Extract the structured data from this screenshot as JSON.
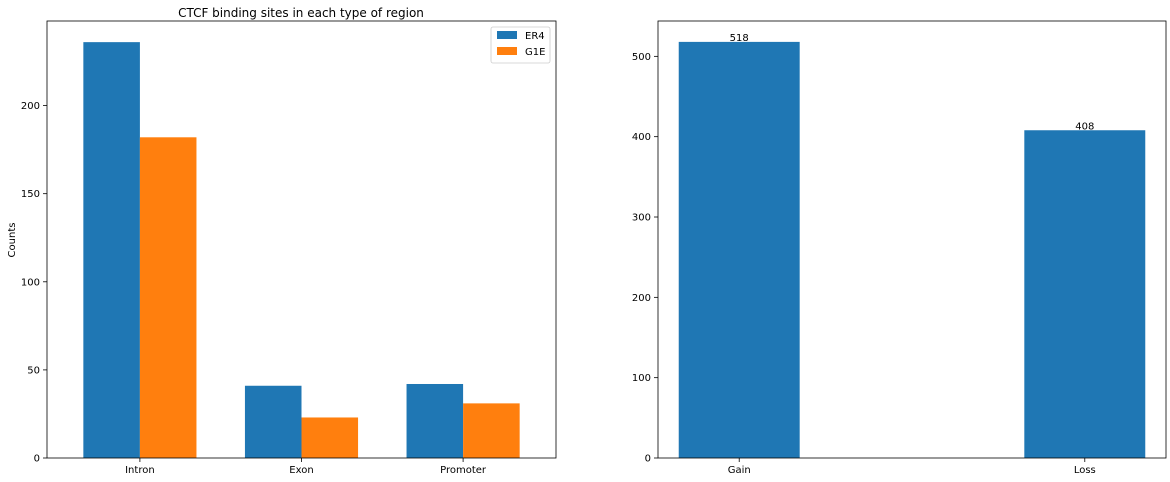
{
  "chart_data": [
    {
      "type": "bar",
      "title": "CTCF binding sites in each type of region",
      "xlabel": "",
      "ylabel": "Counts",
      "categories": [
        "Intron",
        "Exon",
        "Promoter"
      ],
      "series": [
        {
          "name": "ER4",
          "color": "#1f77b4",
          "values": [
            236,
            41,
            42
          ]
        },
        {
          "name": "G1E",
          "color": "#ff7f0e",
          "values": [
            182,
            23,
            31
          ]
        }
      ],
      "ylim": [
        0,
        248
      ],
      "yticks": [
        0,
        50,
        100,
        150,
        200
      ],
      "grid": false,
      "legend": "top-right"
    },
    {
      "type": "bar",
      "title": "",
      "xlabel": "",
      "ylabel": "",
      "categories": [
        "Gain",
        "Loss"
      ],
      "series": [
        {
          "color": "#1f77b4",
          "values": [
            518,
            408
          ]
        }
      ],
      "data_labels": [
        "518",
        "408"
      ],
      "ylim": [
        0,
        544
      ],
      "yticks": [
        0,
        100,
        200,
        300,
        400,
        500
      ],
      "grid": false
    }
  ]
}
